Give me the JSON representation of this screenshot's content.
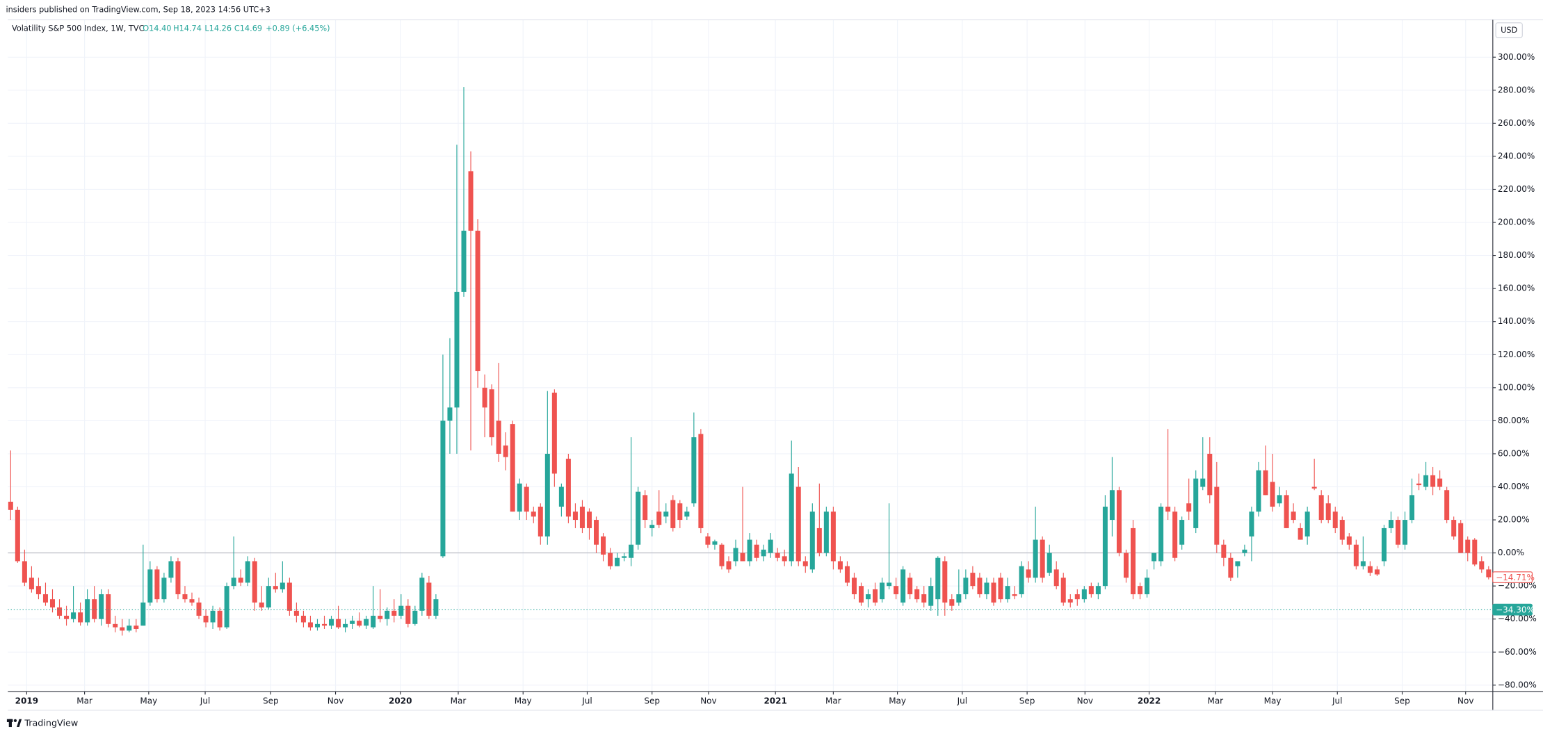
{
  "header": {
    "published": "insiders published on TradingView.com, Sep 18, 2023 14:56 UTC+3"
  },
  "legend": {
    "symbol": "Volatility S&P 500 Index, 1W, TVC",
    "open": "O14.40",
    "high": "H14.74",
    "low": "L14.26",
    "close": "C14.69",
    "change": "+0.89 (+6.45%)"
  },
  "currency": "USD",
  "footer": {
    "brand": "TradingView"
  },
  "chart_data": {
    "type": "candlestick",
    "up_color": "#26a69a",
    "down_color": "#ef5350",
    "grid": true,
    "xlim": [
      -0.4,
      212.6
    ],
    "xticks": [
      {
        "value": 2.3,
        "label": "2019"
      },
      {
        "value": 10.6,
        "label": "Mar"
      },
      {
        "value": 19.8,
        "label": "May"
      },
      {
        "value": 27.9,
        "label": "Jul"
      },
      {
        "value": 37.3,
        "label": "Sep"
      },
      {
        "value": 46.6,
        "label": "Nov"
      },
      {
        "value": 55.9,
        "label": "2020"
      },
      {
        "value": 64.2,
        "label": "Mar"
      },
      {
        "value": 73.5,
        "label": "May"
      },
      {
        "value": 82.7,
        "label": "Jul"
      },
      {
        "value": 92.0,
        "label": "Sep"
      },
      {
        "value": 100.1,
        "label": "Nov"
      },
      {
        "value": 109.7,
        "label": "2021"
      },
      {
        "value": 118.0,
        "label": "Mar"
      },
      {
        "value": 127.2,
        "label": "May"
      },
      {
        "value": 136.5,
        "label": "Jul"
      },
      {
        "value": 145.8,
        "label": "Sep"
      },
      {
        "value": 154.1,
        "label": "Nov"
      },
      {
        "value": 163.3,
        "label": "2022"
      },
      {
        "value": 172.8,
        "label": "Mar"
      },
      {
        "value": 181.0,
        "label": "May"
      },
      {
        "value": 190.3,
        "label": "Jul"
      },
      {
        "value": 199.6,
        "label": "Sep"
      },
      {
        "value": 208.7,
        "label": "Nov"
      }
    ],
    "ylim": [
      -83.9,
      322.6
    ],
    "yticks": [
      {
        "value": -80,
        "label": "−80.00%"
      },
      {
        "value": -60,
        "label": "−60.00%"
      },
      {
        "value": -40,
        "label": "−40.00%"
      },
      {
        "value": -20,
        "label": "−20.00%"
      },
      {
        "value": 0,
        "label": "0.00%"
      },
      {
        "value": 20,
        "label": "20.00%"
      },
      {
        "value": 40,
        "label": "40.00%"
      },
      {
        "value": 60,
        "label": "60.00%"
      },
      {
        "value": 80,
        "label": "80.00%"
      },
      {
        "value": 100,
        "label": "100.00%"
      },
      {
        "value": 120,
        "label": "120.00%"
      },
      {
        "value": 140,
        "label": "140.00%"
      },
      {
        "value": 160,
        "label": "160.00%"
      },
      {
        "value": 180,
        "label": "180.00%"
      },
      {
        "value": 200,
        "label": "200.00%"
      },
      {
        "value": 220,
        "label": "220.00%"
      },
      {
        "value": 240,
        "label": "240.00%"
      },
      {
        "value": 260,
        "label": "260.00%"
      },
      {
        "value": 280,
        "label": "280.00%"
      },
      {
        "value": 300,
        "label": "300.00%"
      }
    ],
    "price_labels": [
      {
        "value": -14.71,
        "label": "−14.71%",
        "color": "#ef5350",
        "style": "outline"
      },
      {
        "value": -34.3,
        "label": "−34.30%",
        "color": "#26a69a",
        "style": "filled"
      }
    ],
    "ohlc": [
      [
        31,
        62,
        20,
        26
      ],
      [
        26,
        28,
        -6,
        -5
      ],
      [
        -5,
        2,
        -20,
        -18
      ],
      [
        -15,
        -8,
        -24,
        -22
      ],
      [
        -20,
        -15,
        -28,
        -25
      ],
      [
        -25,
        -18,
        -32,
        -30
      ],
      [
        -28,
        -22,
        -36,
        -33
      ],
      [
        -33,
        -28,
        -40,
        -38
      ],
      [
        -38,
        -32,
        -44,
        -40
      ],
      [
        -40,
        -20,
        -42,
        -36
      ],
      [
        -36,
        -30,
        -44,
        -42
      ],
      [
        -42,
        -22,
        -44,
        -28
      ],
      [
        -28,
        -20,
        -42,
        -40
      ],
      [
        -40,
        -22,
        -44,
        -25
      ],
      [
        -25,
        -22,
        -45,
        -43
      ],
      [
        -43,
        -38,
        -48,
        -45
      ],
      [
        -45,
        -40,
        -50,
        -47
      ],
      [
        -47,
        -40,
        -48,
        -44
      ],
      [
        -44,
        -40,
        -48,
        -46
      ],
      [
        -44,
        5,
        -44,
        -30
      ],
      [
        -30,
        -5,
        -32,
        -10
      ],
      [
        -10,
        -8,
        -30,
        -28
      ],
      [
        -28,
        -12,
        -30,
        -15
      ],
      [
        -15,
        -2,
        -18,
        -5
      ],
      [
        -5,
        -3,
        -28,
        -25
      ],
      [
        -25,
        -20,
        -30,
        -28
      ],
      [
        -28,
        -24,
        -32,
        -30
      ],
      [
        -30,
        -27,
        -40,
        -38
      ],
      [
        -38,
        -34,
        -45,
        -42
      ],
      [
        -42,
        -32,
        -46,
        -35
      ],
      [
        -35,
        -33,
        -47,
        -45
      ],
      [
        -45,
        -18,
        -46,
        -20
      ],
      [
        -20,
        10,
        -22,
        -15
      ],
      [
        -15,
        -10,
        -20,
        -18
      ],
      [
        -18,
        -2,
        -20,
        -5
      ],
      [
        -5,
        -3,
        -35,
        -30
      ],
      [
        -30,
        -20,
        -35,
        -33
      ],
      [
        -33,
        -15,
        -34,
        -20
      ],
      [
        -20,
        -12,
        -24,
        -22
      ],
      [
        -22,
        -5,
        -24,
        -18
      ],
      [
        -18,
        -15,
        -38,
        -35
      ],
      [
        -35,
        -30,
        -42,
        -38
      ],
      [
        -38,
        -35,
        -45,
        -42
      ],
      [
        -42,
        -38,
        -47,
        -45
      ],
      [
        -45,
        -40,
        -47,
        -43
      ],
      [
        -43,
        -38,
        -46,
        -44
      ],
      [
        -44,
        -38,
        -46,
        -40
      ],
      [
        -40,
        -32,
        -46,
        -45
      ],
      [
        -45,
        -40,
        -48,
        -43
      ],
      [
        -43,
        -38,
        -46,
        -41
      ],
      [
        -41,
        -36,
        -45,
        -44
      ],
      [
        -44,
        -38,
        -46,
        -40
      ],
      [
        -45,
        -20,
        -46,
        -38
      ],
      [
        -38,
        -22,
        -42,
        -40
      ],
      [
        -40,
        -33,
        -44,
        -35
      ],
      [
        -35,
        -28,
        -42,
        -38
      ],
      [
        -38,
        -25,
        -40,
        -32
      ],
      [
        -32,
        -28,
        -45,
        -43
      ],
      [
        -43,
        -32,
        -44,
        -35
      ],
      [
        -35,
        -12,
        -38,
        -15
      ],
      [
        -18,
        -14,
        -40,
        -38
      ],
      [
        -38,
        -25,
        -40,
        -28
      ],
      [
        -2,
        120,
        -3,
        80
      ],
      [
        80,
        130,
        60,
        88
      ],
      [
        88,
        247,
        60,
        158
      ],
      [
        158,
        282,
        155,
        195
      ],
      [
        231,
        243,
        62,
        195
      ],
      [
        195,
        202,
        100,
        110
      ],
      [
        100,
        108,
        70,
        88
      ],
      [
        99,
        102,
        65,
        70
      ],
      [
        80,
        115,
        55,
        60
      ],
      [
        65,
        73,
        50,
        58
      ],
      [
        78,
        80,
        25,
        25
      ],
      [
        25,
        45,
        20,
        42
      ],
      [
        40,
        42,
        20,
        25
      ],
      [
        25,
        28,
        18,
        22
      ],
      [
        28,
        30,
        5,
        10
      ],
      [
        10,
        98,
        5,
        60
      ],
      [
        97,
        99,
        40,
        48
      ],
      [
        28,
        42,
        22,
        40
      ],
      [
        57,
        60,
        18,
        22
      ],
      [
        25,
        30,
        15,
        20
      ],
      [
        28,
        32,
        12,
        15
      ],
      [
        25,
        27,
        8,
        15
      ],
      [
        20,
        22,
        0,
        5
      ],
      [
        10,
        12,
        -5,
        -1
      ],
      [
        0,
        3,
        -10,
        -8
      ],
      [
        -8,
        0,
        -8,
        -3
      ],
      [
        -3,
        0,
        -5,
        -2
      ],
      [
        -3,
        70,
        -8,
        5
      ],
      [
        5,
        40,
        2,
        37
      ],
      [
        35,
        38,
        15,
        20
      ],
      [
        15,
        20,
        10,
        17
      ],
      [
        25,
        38,
        15,
        17
      ],
      [
        22,
        30,
        18,
        25
      ],
      [
        32,
        35,
        13,
        15
      ],
      [
        30,
        32,
        15,
        20
      ],
      [
        22,
        28,
        20,
        25
      ],
      [
        30,
        85,
        28,
        70
      ],
      [
        72,
        75,
        12,
        15
      ],
      [
        10,
        12,
        3,
        5
      ],
      [
        5,
        8,
        2,
        7
      ],
      [
        5,
        6,
        -10,
        -8
      ],
      [
        -5,
        -2,
        -12,
        -10
      ],
      [
        -5,
        8,
        -8,
        3
      ],
      [
        0,
        40,
        -5,
        -5
      ],
      [
        -5,
        12,
        -8,
        8
      ],
      [
        5,
        8,
        -5,
        -3
      ],
      [
        -2,
        5,
        -5,
        2
      ],
      [
        0,
        12,
        -3,
        8
      ],
      [
        0,
        3,
        -5,
        -3
      ],
      [
        -2,
        2,
        -8,
        -5
      ],
      [
        -5,
        68,
        -8,
        48
      ],
      [
        40,
        52,
        -8,
        -5
      ],
      [
        -5,
        -2,
        -12,
        -8
      ],
      [
        -10,
        30,
        -12,
        25
      ],
      [
        15,
        42,
        -2,
        0
      ],
      [
        0,
        28,
        -2,
        25
      ],
      [
        25,
        28,
        -10,
        -5
      ],
      [
        -5,
        -2,
        -12,
        -10
      ],
      [
        -8,
        -5,
        -20,
        -18
      ],
      [
        -15,
        -12,
        -28,
        -25
      ],
      [
        -20,
        -18,
        -32,
        -30
      ],
      [
        -28,
        -22,
        -33,
        -25
      ],
      [
        -22,
        -18,
        -32,
        -30
      ],
      [
        -28,
        -15,
        -30,
        -18
      ],
      [
        -20,
        30,
        -22,
        -18
      ],
      [
        -20,
        -15,
        -28,
        -25
      ],
      [
        -30,
        -8,
        -32,
        -10
      ],
      [
        -15,
        -12,
        -28,
        -25
      ],
      [
        -22,
        -20,
        -30,
        -28
      ],
      [
        -25,
        -20,
        -33,
        -30
      ],
      [
        -32,
        -15,
        -35,
        -20
      ],
      [
        -28,
        -2,
        -38,
        -3
      ],
      [
        -5,
        -2,
        -38,
        -30
      ],
      [
        -28,
        -25,
        -35,
        -32
      ],
      [
        -30,
        -10,
        -32,
        -25
      ],
      [
        -25,
        -10,
        -28,
        -15
      ],
      [
        -12,
        -8,
        -22,
        -20
      ],
      [
        -15,
        -12,
        -27,
        -25
      ],
      [
        -25,
        -15,
        -28,
        -18
      ],
      [
        -18,
        -15,
        -32,
        -30
      ],
      [
        -15,
        -12,
        -30,
        -28
      ],
      [
        -28,
        -15,
        -30,
        -20
      ],
      [
        -25,
        -20,
        -28,
        -26
      ],
      [
        -25,
        -5,
        -27,
        -8
      ],
      [
        -10,
        -5,
        -18,
        -15
      ],
      [
        -15,
        28,
        -18,
        8
      ],
      [
        8,
        10,
        -18,
        -15
      ],
      [
        -12,
        5,
        -14,
        0
      ],
      [
        -10,
        -5,
        -22,
        -20
      ],
      [
        -15,
        -12,
        -32,
        -30
      ],
      [
        -28,
        -25,
        -33,
        -30
      ],
      [
        -25,
        -22,
        -32,
        -28
      ],
      [
        -28,
        -20,
        -30,
        -22
      ],
      [
        -20,
        -18,
        -27,
        -25
      ],
      [
        -25,
        -18,
        -28,
        -20
      ],
      [
        -20,
        35,
        -22,
        28
      ],
      [
        20,
        58,
        10,
        38
      ],
      [
        38,
        40,
        -2,
        0
      ],
      [
        0,
        2,
        -18,
        -15
      ],
      [
        15,
        20,
        -28,
        -25
      ],
      [
        -20,
        -18,
        -28,
        -25
      ],
      [
        -25,
        -10,
        -27,
        -15
      ],
      [
        -5,
        0,
        -10,
        0
      ],
      [
        -5,
        30,
        -8,
        28
      ],
      [
        28,
        75,
        20,
        25
      ],
      [
        25,
        28,
        -5,
        -3
      ],
      [
        5,
        22,
        2,
        20
      ],
      [
        30,
        45,
        20,
        25
      ],
      [
        15,
        50,
        12,
        45
      ],
      [
        40,
        70,
        38,
        45
      ],
      [
        60,
        70,
        30,
        35
      ],
      [
        40,
        55,
        0,
        5
      ],
      [
        5,
        8,
        -8,
        -3
      ],
      [
        -3,
        0,
        -17,
        -15
      ],
      [
        -8,
        -5,
        -15,
        -5
      ],
      [
        0,
        5,
        -2,
        2
      ],
      [
        10,
        28,
        -5,
        25
      ],
      [
        25,
        55,
        22,
        50
      ],
      [
        50,
        65,
        35,
        35
      ],
      [
        43,
        60,
        25,
        28
      ],
      [
        30,
        40,
        28,
        35
      ],
      [
        35,
        38,
        15,
        15
      ],
      [
        25,
        30,
        18,
        20
      ],
      [
        15,
        18,
        8,
        8
      ],
      [
        10,
        28,
        5,
        25
      ],
      [
        40,
        57,
        38,
        39
      ],
      [
        35,
        38,
        18,
        20
      ],
      [
        30,
        35,
        18,
        20
      ],
      [
        25,
        28,
        12,
        15
      ],
      [
        20,
        22,
        5,
        8
      ],
      [
        10,
        12,
        2,
        5
      ],
      [
        5,
        8,
        -10,
        -8
      ],
      [
        -8,
        10,
        -10,
        -5
      ],
      [
        -8,
        -5,
        -14,
        -12
      ],
      [
        -10,
        -8,
        -14,
        -13
      ],
      [
        -5,
        17,
        -8,
        15
      ],
      [
        15,
        25,
        12,
        20
      ],
      [
        20,
        22,
        3,
        5
      ],
      [
        5,
        25,
        2,
        20
      ],
      [
        20,
        45,
        18,
        35
      ],
      [
        42,
        48,
        38,
        41
      ],
      [
        40,
        55,
        38,
        47
      ],
      [
        47,
        52,
        35,
        40
      ],
      [
        45,
        50,
        38,
        40
      ],
      [
        38,
        40,
        18,
        20
      ],
      [
        20,
        22,
        8,
        10
      ],
      [
        18,
        20,
        0,
        0
      ],
      [
        8,
        10,
        -5,
        0
      ],
      [
        8,
        9,
        -8,
        -7
      ],
      [
        -5,
        -2,
        -12,
        -10
      ],
      [
        -10,
        -8,
        -16,
        -14.71
      ]
    ]
  }
}
